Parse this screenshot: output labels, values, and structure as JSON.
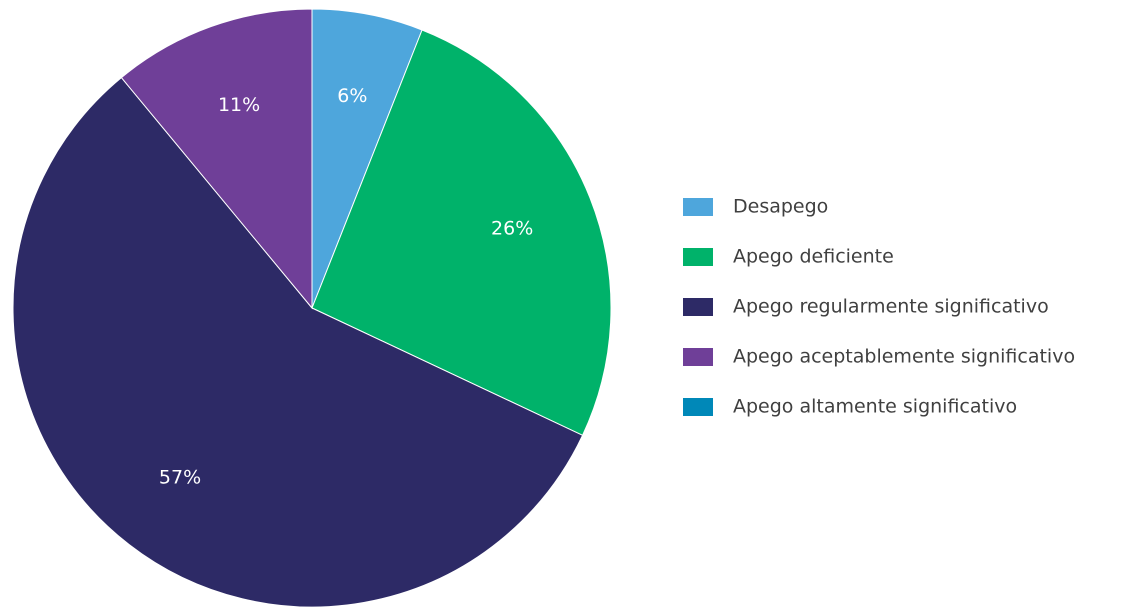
{
  "chart_data": {
    "type": "pie",
    "categories": [
      "Desapego",
      "Apego deficiente",
      "Apego regularmente significativo",
      "Apego aceptablemente significativo",
      "Apego altamente significativo"
    ],
    "values": [
      6,
      26,
      57,
      11,
      0
    ],
    "value_labels": [
      "6%",
      "26%",
      "57%",
      "11%",
      null
    ],
    "colors": [
      "#4ea6dc",
      "#00b26a",
      "#2d2a66",
      "#6f3f98",
      "#0088b8"
    ],
    "legend": "right"
  }
}
